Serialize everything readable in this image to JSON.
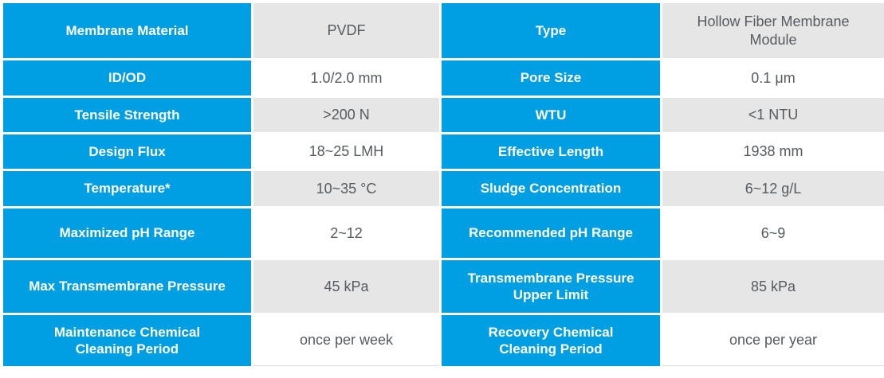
{
  "colors": {
    "header_blue": "#009EE2",
    "row_alt_gray": "#E6E6E6",
    "label_text": "#FFFFFF",
    "value_text": "#555B61"
  },
  "spec_table": {
    "rows": [
      {
        "left_label": "Membrane Material",
        "left_value": "PVDF",
        "right_label": "Type",
        "right_value": "Hollow Fiber Membrane Module"
      },
      {
        "left_label": "ID/OD",
        "left_value": "1.0/2.0 mm",
        "right_label": "Pore Size",
        "right_value": "0.1 μm"
      },
      {
        "left_label": "Tensile Strength",
        "left_value": ">200 N",
        "right_label": "WTU",
        "right_value": "<1 NTU"
      },
      {
        "left_label": "Design Flux",
        "left_value": "18~25 LMH",
        "right_label": "Effective Length",
        "right_value": "1938 mm"
      },
      {
        "left_label": "Temperature*",
        "left_value": "10~35 °C",
        "right_label": "Sludge Concentration",
        "right_value": "6~12 g/L"
      },
      {
        "left_label": "Maximized pH Range",
        "left_value": "2~12",
        "right_label": "Recommended pH Range",
        "right_value": "6~9"
      },
      {
        "left_label": "Max Transmembrane Pressure",
        "left_value": "45 kPa",
        "right_label": "Transmembrane Pressure Upper Limit",
        "right_value": "85 kPa"
      },
      {
        "left_label": "Maintenance Chemical Cleaning Period",
        "left_value": "once per week",
        "right_label": "Recovery Chemical Cleaning Period",
        "right_value": "once per year"
      }
    ]
  }
}
